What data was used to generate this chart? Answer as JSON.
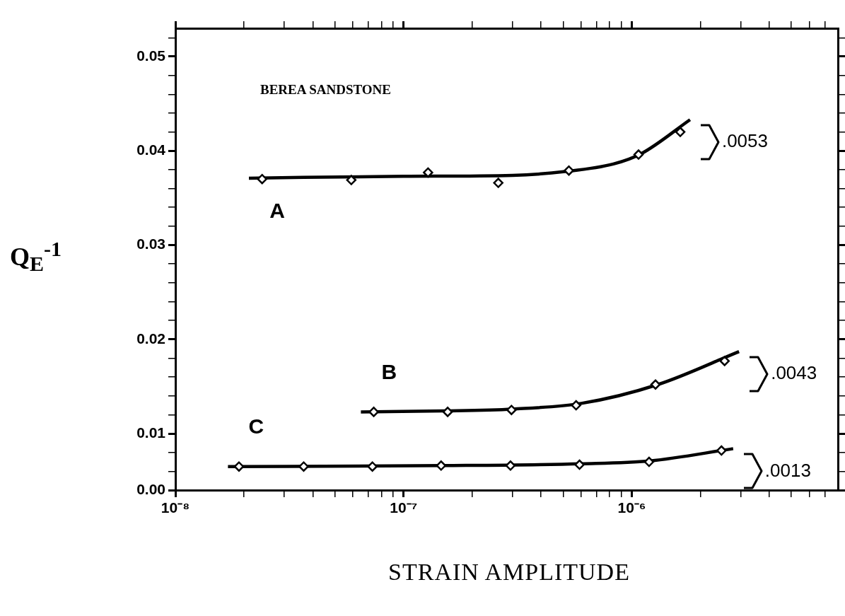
{
  "chart_data": {
    "type": "scatter",
    "title": "BEREA SANDSTONE",
    "xlabel": "STRAIN AMPLITUDE",
    "ylabel": "Q$_{E}$$^{-1}$",
    "log": "x",
    "marker": "diamond",
    "xlim": [
      1e-08,
      8e-06
    ],
    "xticks": [
      {
        "value": 1e-08,
        "label": "10⁻⁸"
      },
      {
        "value": 2e-08,
        "label": null
      },
      {
        "value": 3e-08,
        "label": null
      },
      {
        "value": 4e-08,
        "label": null
      },
      {
        "value": 5e-08,
        "label": null
      },
      {
        "value": 6e-08,
        "label": null
      },
      {
        "value": 7e-08,
        "label": null
      },
      {
        "value": 8e-08,
        "label": null
      },
      {
        "value": 9e-08,
        "label": null
      },
      {
        "value": 1e-07,
        "label": "10⁻⁷"
      },
      {
        "value": 2e-07,
        "label": null
      },
      {
        "value": 3e-07,
        "label": null
      },
      {
        "value": 4e-07,
        "label": null
      },
      {
        "value": 5e-07,
        "label": null
      },
      {
        "value": 6e-07,
        "label": null
      },
      {
        "value": 7e-07,
        "label": null
      },
      {
        "value": 8e-07,
        "label": null
      },
      {
        "value": 9e-07,
        "label": null
      },
      {
        "value": 1e-06,
        "label": "10⁻⁶"
      },
      {
        "value": 2e-06,
        "label": null
      },
      {
        "value": 3e-06,
        "label": null
      },
      {
        "value": 4e-06,
        "label": null
      },
      {
        "value": 5e-06,
        "label": null
      },
      {
        "value": 6e-06,
        "label": null
      },
      {
        "value": 7e-06,
        "label": null
      }
    ],
    "ylim": [
      0.004,
      0.053
    ],
    "yticks": [
      {
        "value": 0.004,
        "label": "0.00"
      },
      {
        "value": 0.006,
        "label": null
      },
      {
        "value": 0.008,
        "label": null
      },
      {
        "value": 0.01,
        "label": "0.01"
      },
      {
        "value": 0.012,
        "label": null
      },
      {
        "value": 0.014,
        "label": null
      },
      {
        "value": 0.016,
        "label": null
      },
      {
        "value": 0.018,
        "label": null
      },
      {
        "value": 0.02,
        "label": "0.02"
      },
      {
        "value": 0.022,
        "label": null
      },
      {
        "value": 0.024,
        "label": null
      },
      {
        "value": 0.026,
        "label": null
      },
      {
        "value": 0.028,
        "label": null
      },
      {
        "value": 0.03,
        "label": "0.03"
      },
      {
        "value": 0.032,
        "label": null
      },
      {
        "value": 0.034,
        "label": null
      },
      {
        "value": 0.036,
        "label": null
      },
      {
        "value": 0.038,
        "label": null
      },
      {
        "value": 0.04,
        "label": "0.04"
      },
      {
        "value": 0.042,
        "label": null
      },
      {
        "value": 0.044,
        "label": null
      },
      {
        "value": 0.046,
        "label": null
      },
      {
        "value": 0.048,
        "label": null
      },
      {
        "value": 0.05,
        "label": "0.05"
      },
      {
        "value": 0.052,
        "label": null
      }
    ],
    "series": [
      {
        "color": "#000000",
        "x": [
          2.4e-08,
          5.9e-08,
          1.28e-07,
          2.6e-07,
          5.3e-07,
          1.07e-06,
          1.63e-06
        ],
        "values": [
          0.037,
          0.0369,
          0.0377,
          0.0366,
          0.0379,
          0.0396,
          0.042
        ]
      },
      {
        "color": "#000000",
        "x": [
          7.4e-08,
          1.56e-07,
          2.97e-07,
          5.7e-07,
          1.27e-06,
          2.55e-06
        ],
        "values": [
          0.0123,
          0.0123,
          0.0125,
          0.013,
          0.0152,
          0.0177
        ]
      },
      {
        "color": "#000000",
        "x": [
          1.9e-08,
          3.65e-08,
          7.3e-08,
          1.46e-07,
          2.94e-07,
          5.9e-07,
          1.19e-06,
          2.47e-06
        ],
        "values": [
          0.0065,
          0.0065,
          0.0065,
          0.0066,
          0.0066,
          0.0067,
          0.007,
          0.0082
        ]
      },
      {
        "type": "line",
        "name": "A",
        "color": "#000000",
        "marker": "none",
        "x": [
          2.1e-08,
          1e-07,
          3e-07,
          5.1e-07,
          8.3e-07,
          1.1e-06,
          1.8e-06
        ],
        "values": [
          0.0371,
          0.0373,
          0.0374,
          0.0378,
          0.0386,
          0.0397,
          0.0433
        ]
      },
      {
        "type": "line",
        "name": "B",
        "color": "#000000",
        "marker": "none",
        "x": [
          6.5e-08,
          1.5e-07,
          3e-07,
          6e-07,
          1.3e-06,
          2.95e-06
        ],
        "values": [
          0.0123,
          0.0124,
          0.0126,
          0.0132,
          0.0152,
          0.0187
        ]
      },
      {
        "type": "line",
        "name": "C",
        "color": "#000000",
        "marker": "none",
        "x": [
          1.7e-08,
          1.5e-07,
          6e-07,
          1.2e-06,
          2.78e-06
        ],
        "values": [
          0.0065,
          0.0066,
          0.0068,
          0.0071,
          0.0084
        ]
      }
    ],
    "annotations": [
      ".0053",
      ".0043",
      ".0013"
    ]
  }
}
